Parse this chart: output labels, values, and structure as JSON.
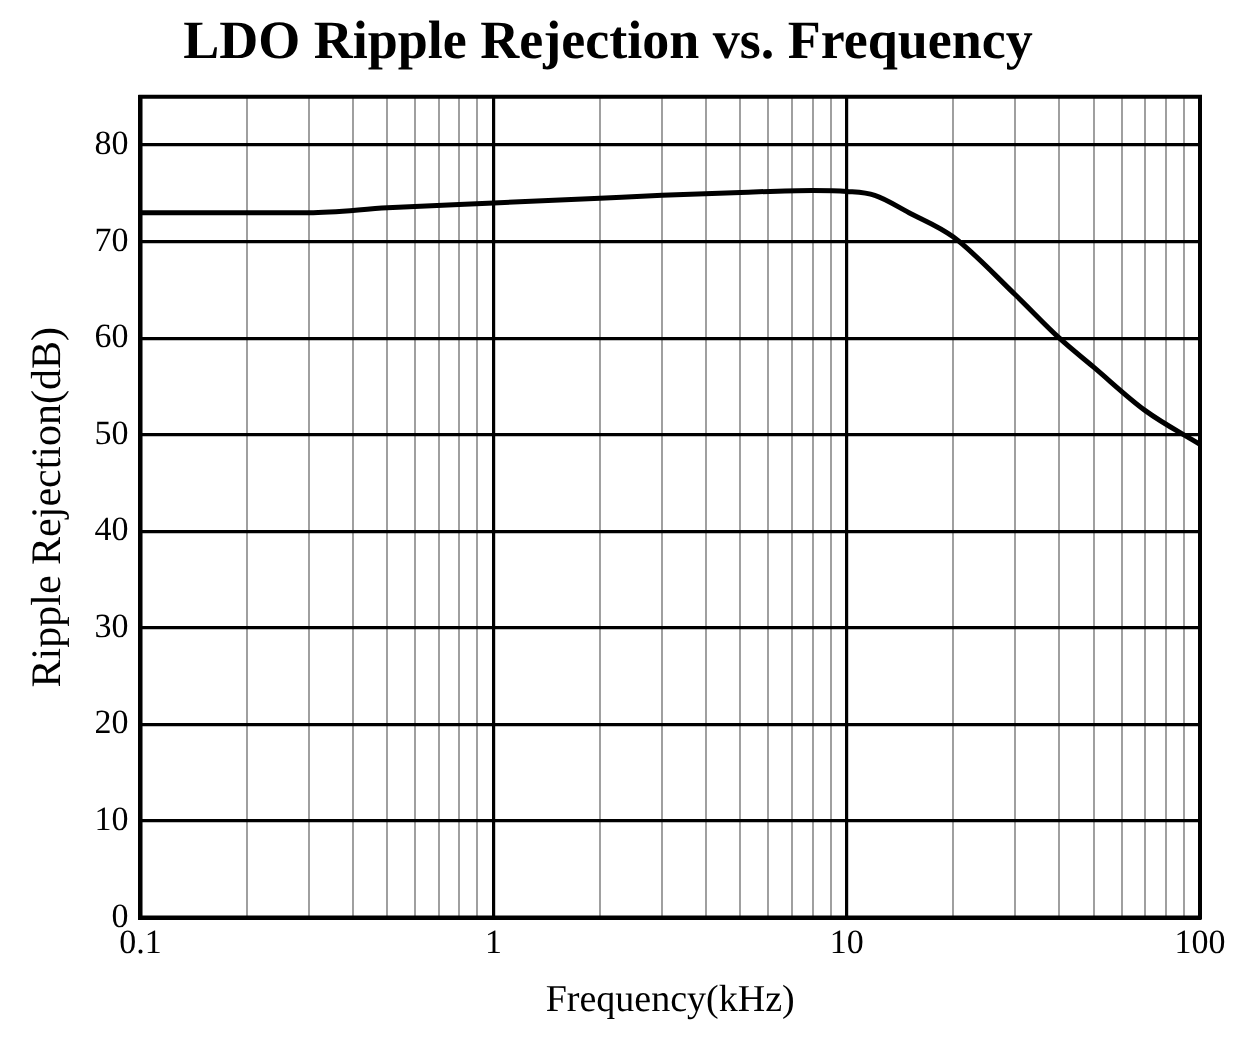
{
  "chart_data": {
    "type": "line",
    "title": "LDO Ripple Rejection vs. Frequency",
    "xlabel": "Frequency(kHz)",
    "ylabel": "Ripple Rejection(dB)",
    "x": [
      0.1,
      0.2,
      0.3,
      0.5,
      1,
      2,
      3,
      5,
      8,
      10,
      12,
      15,
      20,
      30,
      40,
      50,
      70,
      100
    ],
    "series": [
      {
        "color": "#000000",
        "values": [
          73,
          73,
          73,
          73.5,
          74,
          74.5,
          74.8,
          75.1,
          75.3,
          75.2,
          74.8,
          73,
          70.5,
          64.5,
          60,
          57,
          52.5,
          49
        ]
      }
    ],
    "log": "x",
    "xlim": [
      0.1,
      100
    ],
    "xticks": [
      0.1,
      {
        "value": 0.2,
        "label": null
      },
      {
        "value": 0.3,
        "label": null
      },
      {
        "value": 0.4,
        "label": null
      },
      {
        "value": 0.5,
        "label": null
      },
      {
        "value": 0.6,
        "label": null
      },
      {
        "value": 0.7,
        "label": null
      },
      {
        "value": 0.8,
        "label": null
      },
      {
        "value": 0.9,
        "label": null
      },
      1,
      {
        "value": 2,
        "label": null
      },
      {
        "value": 3,
        "label": null
      },
      {
        "value": 4,
        "label": null
      },
      {
        "value": 5,
        "label": null
      },
      {
        "value": 6,
        "label": null
      },
      {
        "value": 7,
        "label": null
      },
      {
        "value": 8,
        "label": null
      },
      {
        "value": 9,
        "label": null
      },
      10,
      {
        "value": 20,
        "label": null
      },
      {
        "value": 30,
        "label": null
      },
      {
        "value": 40,
        "label": null
      },
      {
        "value": 50,
        "label": null
      },
      {
        "value": 60,
        "label": null
      },
      {
        "value": 70,
        "label": null
      },
      {
        "value": 80,
        "label": null
      },
      {
        "value": 90,
        "label": null
      },
      100
    ],
    "ylim": [
      0,
      85
    ],
    "yticks": [
      0,
      10,
      20,
      30,
      40,
      50,
      60,
      70,
      80
    ],
    "grid": true,
    "legend": false,
    "marker": "none",
    "line_style": "solid"
  }
}
